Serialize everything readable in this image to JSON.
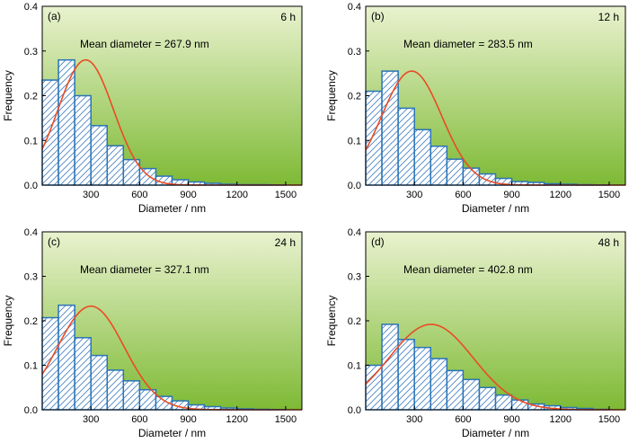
{
  "chart_data": [
    {
      "type": "bar",
      "panel_label": "(a)",
      "time_label": "6 h",
      "annotation": "Mean diameter = 267.9 nm",
      "xlabel": "Diameter / nm",
      "ylabel": "Frequency",
      "xlim": [
        0,
        1600
      ],
      "ylim": [
        0,
        0.4
      ],
      "xticks": [
        300,
        600,
        900,
        1200,
        1500
      ],
      "yticks": [
        0.0,
        0.1,
        0.2,
        0.3,
        0.4
      ],
      "bin_width": 100,
      "bins_start": [
        0,
        100,
        200,
        300,
        400,
        500,
        600,
        700,
        800,
        900,
        1000,
        1100,
        1200,
        1300,
        1400
      ],
      "values": [
        0.235,
        0.28,
        0.2,
        0.133,
        0.088,
        0.057,
        0.037,
        0.02,
        0.012,
        0.007,
        0.004,
        0.002,
        0.001,
        0.001,
        0.0005
      ],
      "fit": {
        "type": "gaussian",
        "peak_x": 267.9,
        "peak_y": 0.28,
        "sigma": 170
      }
    },
    {
      "type": "bar",
      "panel_label": "(b)",
      "time_label": "12 h",
      "annotation": "Mean diameter = 283.5 nm",
      "xlabel": "Diameter / nm",
      "ylabel": "Frequency",
      "xlim": [
        0,
        1600
      ],
      "ylim": [
        0,
        0.4
      ],
      "xticks": [
        300,
        600,
        900,
        1200,
        1500
      ],
      "yticks": [
        0.0,
        0.1,
        0.2,
        0.3,
        0.4
      ],
      "bin_width": 100,
      "bins_start": [
        0,
        100,
        200,
        300,
        400,
        500,
        600,
        700,
        800,
        900,
        1000,
        1100,
        1200,
        1300,
        1400
      ],
      "values": [
        0.21,
        0.255,
        0.172,
        0.124,
        0.087,
        0.058,
        0.038,
        0.025,
        0.015,
        0.008,
        0.006,
        0.003,
        0.002,
        0.001,
        0.0005
      ],
      "fit": {
        "type": "gaussian",
        "peak_x": 283.5,
        "peak_y": 0.255,
        "sigma": 185
      }
    },
    {
      "type": "bar",
      "panel_label": "(c)",
      "time_label": "24 h",
      "annotation": "Mean diameter = 327.1 nm",
      "xlabel": "Diameter / nm",
      "ylabel": "Frequency",
      "xlim": [
        0,
        1600
      ],
      "ylim": [
        0,
        0.4
      ],
      "xticks": [
        300,
        600,
        900,
        1200,
        1500
      ],
      "yticks": [
        0.0,
        0.1,
        0.2,
        0.3,
        0.4
      ],
      "bin_width": 100,
      "bins_start": [
        0,
        100,
        200,
        300,
        400,
        500,
        600,
        700,
        800,
        900,
        1000,
        1100,
        1200,
        1300,
        1400
      ],
      "values": [
        0.207,
        0.235,
        0.162,
        0.122,
        0.089,
        0.065,
        0.045,
        0.03,
        0.02,
        0.011,
        0.007,
        0.004,
        0.002,
        0.001,
        0.0005
      ],
      "fit": {
        "type": "gaussian",
        "peak_x": 300,
        "peak_y": 0.233,
        "sigma": 205
      }
    },
    {
      "type": "bar",
      "panel_label": "(d)",
      "time_label": "48 h",
      "annotation": "Mean diameter = 402.8 nm",
      "xlabel": "Diameter / nm",
      "ylabel": "Frequency",
      "xlim": [
        0,
        1600
      ],
      "ylim": [
        0,
        0.4
      ],
      "xticks": [
        300,
        600,
        900,
        1200,
        1500
      ],
      "yticks": [
        0.0,
        0.1,
        0.2,
        0.3,
        0.4
      ],
      "bin_width": 100,
      "bins_start": [
        0,
        100,
        200,
        300,
        400,
        500,
        600,
        700,
        800,
        900,
        1000,
        1100,
        1200,
        1300,
        1400
      ],
      "values": [
        0.1,
        0.192,
        0.158,
        0.14,
        0.115,
        0.088,
        0.068,
        0.05,
        0.033,
        0.022,
        0.013,
        0.009,
        0.005,
        0.003,
        0.001
      ],
      "fit": {
        "type": "gaussian",
        "peak_x": 402.8,
        "peak_y": 0.192,
        "sigma": 260
      }
    }
  ],
  "colors": {
    "bar_edge": "#2a74b5",
    "hatch": "#4d86c4",
    "fit_line": "#ea4b25",
    "bg_top": "#e9f2cf",
    "bg_bottom": "#7eba35"
  }
}
